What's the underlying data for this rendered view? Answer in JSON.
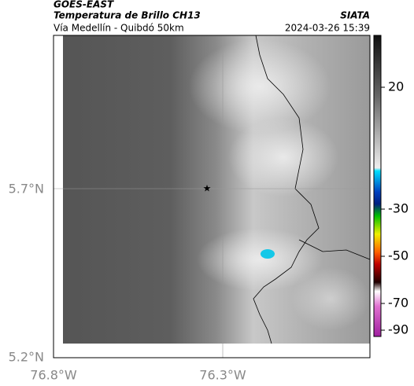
{
  "header": {
    "source": "GOES-EAST",
    "title": "Temperatura de Brillo CH13",
    "subtitle": "Vía Medellín - Quibdó 50km",
    "agency": "SIATA",
    "timestamp": "2024-03-26 15:39"
  },
  "axes": {
    "lat_labels": [
      "5.7°N",
      "5.2°N"
    ],
    "lon_labels": [
      "76.8°W",
      "76.3°W"
    ]
  },
  "colorbar": {
    "ticks": [
      20,
      -30,
      -50,
      -70,
      -90
    ]
  }
}
